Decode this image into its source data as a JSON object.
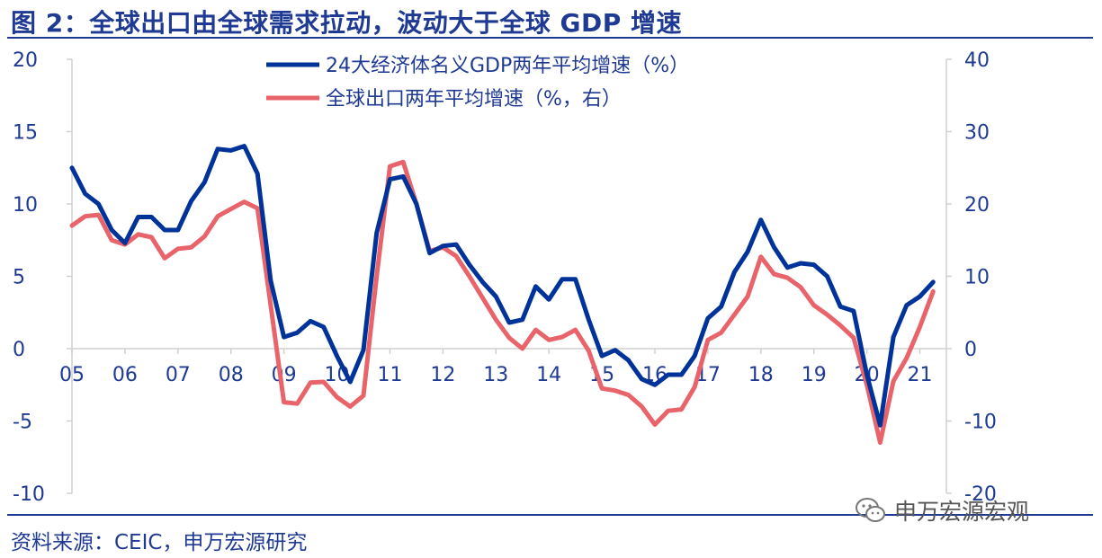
{
  "header": {
    "title": "图 2：全球出口由全球需求拉动，波动大于全球 GDP 增速"
  },
  "footer": {
    "source": "资料来源：CEIC，申万宏源研究",
    "watermark": "申万宏源宏观"
  },
  "colors": {
    "accent": "#1f3a93",
    "series_gdp": "#003399",
    "series_export": "#e8646a",
    "axis": "#d0d0d0"
  },
  "chart_data": {
    "type": "line",
    "title": "",
    "x_start": 2005.0,
    "x_step": 0.25,
    "xlim": [
      2005.0,
      2021.5
    ],
    "ylim_left": [
      -10,
      20
    ],
    "ylim_right": [
      -20,
      40
    ],
    "y_ticks_left": [
      "20",
      "15",
      "10",
      "5",
      "0",
      "-5",
      "-10"
    ],
    "y_ticks_right": [
      "40",
      "30",
      "20",
      "10",
      "0",
      "-10",
      "-20"
    ],
    "x_ticks": [
      "05",
      "06",
      "07",
      "08",
      "09",
      "10",
      "11",
      "12",
      "13",
      "14",
      "15",
      "16",
      "17",
      "18",
      "19",
      "20",
      "21"
    ],
    "grid": false,
    "legend_position": "top-center",
    "series": [
      {
        "name": "24大经济体名义GDP两年平均增速（%）",
        "axis": "left",
        "values": [
          12.5,
          10.7,
          10.0,
          8.2,
          7.3,
          9.1,
          9.1,
          8.2,
          8.2,
          10.2,
          11.5,
          13.8,
          13.7,
          14.0,
          12.1,
          4.7,
          0.8,
          1.1,
          1.9,
          1.5,
          -0.5,
          -2.3,
          -0.1,
          8.0,
          11.7,
          11.9,
          10.0,
          6.6,
          7.1,
          7.2,
          5.8,
          4.6,
          3.6,
          1.8,
          2.0,
          4.3,
          3.4,
          4.8,
          4.8,
          2.0,
          -0.5,
          -0.1,
          -0.8,
          -2.1,
          -2.5,
          -1.8,
          -1.8,
          -0.5,
          2.1,
          2.9,
          5.3,
          6.7,
          8.9,
          7.0,
          5.6,
          5.9,
          5.8,
          5.0,
          2.9,
          2.6,
          -1.8,
          -5.3,
          0.8,
          3.0,
          3.6,
          4.6
        ]
      },
      {
        "name": "全球出口两年平均增速（%，右）",
        "axis": "right",
        "values": [
          17.0,
          18.3,
          18.5,
          15.0,
          14.4,
          15.8,
          15.4,
          12.5,
          13.8,
          14.0,
          15.5,
          18.3,
          19.3,
          20.3,
          19.4,
          6.0,
          -7.4,
          -7.6,
          -4.7,
          -4.6,
          -6.7,
          -8.0,
          -6.5,
          10.0,
          25.2,
          25.8,
          20.0,
          13.5,
          14.0,
          12.8,
          10.0,
          7.0,
          4.0,
          1.5,
          0.0,
          2.6,
          1.2,
          1.6,
          2.6,
          -0.3,
          -5.5,
          -5.8,
          -6.4,
          -8.0,
          -10.5,
          -8.6,
          -8.4,
          -5.3,
          1.2,
          2.2,
          4.7,
          7.2,
          12.7,
          10.3,
          9.8,
          8.5,
          6.0,
          4.7,
          3.2,
          1.5,
          -5.0,
          -13.0,
          -4.5,
          -1.3,
          3.0,
          7.9
        ]
      }
    ]
  }
}
